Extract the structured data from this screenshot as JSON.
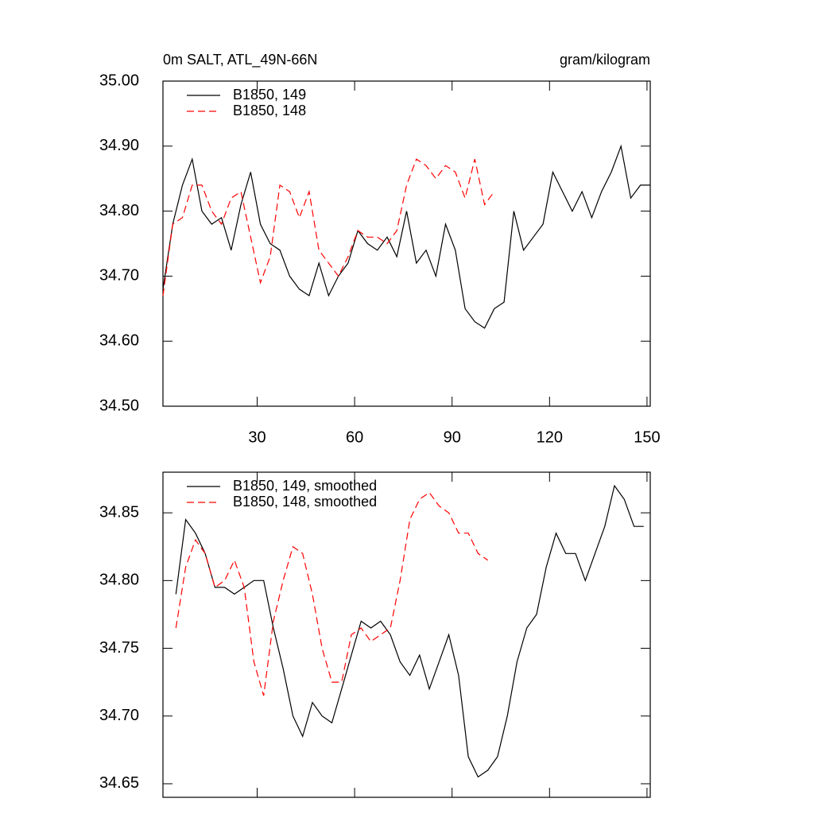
{
  "chart_data": [
    {
      "type": "line",
      "title": "0m SALT, ATL_49N-66N",
      "subtitle": "gram/kilogram",
      "xlim": [
        1,
        151
      ],
      "xticks": [
        30,
        60,
        90,
        120,
        150
      ],
      "xtick_labels": true,
      "ylim": [
        34.5,
        35.0
      ],
      "yticks": [
        {
          "value": 34.5,
          "label": "34.50"
        },
        {
          "value": 34.6,
          "label": "34.60"
        },
        {
          "value": 34.7,
          "label": "34.70"
        },
        {
          "value": 34.8,
          "label": "34.80"
        },
        {
          "value": 34.9,
          "label": "34.90"
        },
        {
          "value": 35.0,
          "label": "35.00"
        }
      ],
      "series": [
        {
          "name": "B1850, 149",
          "color": "#000000",
          "dashed": false,
          "x": [
            1,
            4,
            7,
            10,
            13,
            16,
            19,
            22,
            25,
            28,
            31,
            34,
            37,
            40,
            43,
            46,
            49,
            52,
            55,
            58,
            61,
            64,
            67,
            70,
            73,
            76,
            79,
            82,
            85,
            88,
            91,
            94,
            97,
            100,
            103,
            106,
            109,
            112,
            115,
            118,
            121,
            124,
            127,
            130,
            133,
            136,
            139,
            142,
            145,
            148,
            151
          ],
          "values": [
            34.68,
            34.78,
            34.84,
            34.88,
            34.8,
            34.78,
            34.79,
            34.74,
            34.81,
            34.86,
            34.78,
            34.75,
            34.74,
            34.7,
            34.68,
            34.67,
            34.72,
            34.67,
            34.7,
            34.72,
            34.77,
            34.75,
            34.74,
            34.76,
            34.73,
            34.8,
            34.72,
            34.74,
            34.7,
            34.78,
            34.74,
            34.65,
            34.63,
            34.62,
            34.65,
            34.66,
            34.8,
            34.74,
            34.76,
            34.78,
            34.86,
            34.83,
            34.8,
            34.83,
            34.79,
            34.83,
            34.86,
            34.9,
            34.82,
            34.84,
            34.84
          ]
        },
        {
          "name": "B1850, 148",
          "color": "#ff0000",
          "dashed": true,
          "x": [
            1,
            4,
            7,
            10,
            13,
            16,
            19,
            22,
            25,
            28,
            31,
            34,
            37,
            40,
            43,
            46,
            49,
            52,
            55,
            58,
            61,
            64,
            67,
            70,
            73,
            76,
            79,
            82,
            85,
            88,
            91,
            94,
            97,
            100,
            103
          ],
          "values": [
            34.67,
            34.78,
            34.79,
            34.84,
            34.84,
            34.8,
            34.78,
            34.82,
            34.83,
            34.76,
            34.69,
            34.73,
            34.84,
            34.83,
            34.79,
            34.83,
            34.74,
            34.72,
            34.7,
            34.73,
            34.77,
            34.76,
            34.76,
            34.75,
            34.77,
            34.84,
            34.88,
            34.87,
            34.85,
            34.87,
            34.86,
            34.82,
            34.88,
            34.81,
            34.83
          ]
        }
      ]
    },
    {
      "type": "line",
      "xlim": [
        1,
        151
      ],
      "xticks": [
        30,
        60,
        90,
        120,
        150
      ],
      "xtick_labels": false,
      "ylim": [
        34.64,
        34.88
      ],
      "yticks": [
        34.65,
        {
          "value": 34.7,
          "label": "34.70"
        },
        34.75,
        {
          "value": 34.8,
          "label": "34.80"
        },
        34.85
      ],
      "series": [
        {
          "name": "B1850, 149, smoothed",
          "color": "#000000",
          "dashed": false,
          "x": [
            5,
            8,
            11,
            14,
            17,
            20,
            23,
            26,
            29,
            32,
            35,
            38,
            41,
            44,
            47,
            50,
            53,
            56,
            59,
            62,
            65,
            68,
            71,
            74,
            77,
            80,
            83,
            86,
            89,
            92,
            95,
            98,
            101,
            104,
            107,
            110,
            113,
            116,
            119,
            122,
            125,
            128,
            131,
            134,
            137,
            140,
            143,
            146,
            149
          ],
          "values": [
            34.79,
            34.845,
            34.835,
            34.82,
            34.795,
            34.795,
            34.79,
            34.795,
            34.8,
            34.8,
            34.765,
            34.735,
            34.7,
            34.685,
            34.71,
            34.7,
            34.695,
            34.72,
            34.745,
            34.77,
            34.765,
            34.77,
            34.76,
            34.74,
            34.73,
            34.745,
            34.72,
            34.74,
            34.76,
            34.73,
            34.67,
            34.655,
            34.66,
            34.67,
            34.7,
            34.74,
            34.765,
            34.775,
            34.81,
            34.835,
            34.82,
            34.82,
            34.8,
            34.82,
            34.84,
            34.87,
            34.86,
            34.84,
            34.84
          ]
        },
        {
          "name": "B1850, 148, smoothed",
          "color": "#ff0000",
          "dashed": true,
          "x": [
            5,
            8,
            11,
            14,
            17,
            20,
            23,
            26,
            29,
            32,
            35,
            38,
            41,
            44,
            47,
            50,
            53,
            56,
            59,
            62,
            65,
            68,
            71,
            74,
            77,
            80,
            83,
            86,
            89,
            92,
            95,
            98,
            101
          ],
          "values": [
            34.765,
            34.81,
            34.83,
            34.82,
            34.795,
            34.8,
            34.815,
            34.795,
            34.74,
            34.715,
            34.77,
            34.8,
            34.825,
            34.82,
            34.79,
            34.75,
            34.725,
            34.725,
            34.76,
            34.765,
            34.755,
            34.76,
            34.765,
            34.8,
            34.845,
            34.86,
            34.865,
            34.855,
            34.85,
            34.835,
            34.835,
            34.82,
            34.815
          ]
        }
      ]
    }
  ]
}
